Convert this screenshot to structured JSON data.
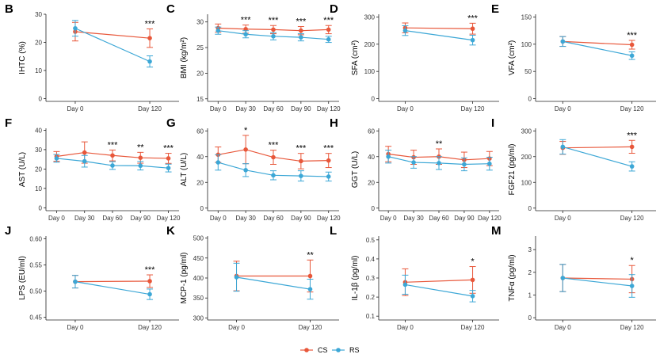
{
  "colors": {
    "CS": "#e8573a",
    "RS": "#3ca7d6",
    "axis": "#222222"
  },
  "legend": {
    "items": [
      {
        "key": "CS",
        "label": "CS"
      },
      {
        "key": "RS",
        "label": "RS"
      }
    ]
  },
  "chart_data": [
    {
      "letter": "B",
      "type": "line",
      "ylabel": "IHTC (%)",
      "categories": [
        "Day 0",
        "Day 120"
      ],
      "ylim": [
        -1,
        30
      ],
      "yticks": [
        0,
        10,
        20,
        30
      ],
      "series": [
        {
          "name": "CS",
          "values": [
            23.8,
            21.5
          ],
          "err": [
            3.3,
            3.3
          ]
        },
        {
          "name": "RS",
          "values": [
            25.0,
            13.2
          ],
          "err": [
            2.8,
            2.0
          ]
        }
      ],
      "annotations": [
        "",
        "***"
      ]
    },
    {
      "letter": "C",
      "type": "line",
      "ylabel": "BMI (kg/m²)",
      "categories": [
        "Day 0",
        "Day 30",
        "Day 60",
        "Day 90",
        "Day 120"
      ],
      "ylim": [
        14.5,
        31.5
      ],
      "yticks": [
        15,
        20,
        25,
        30
      ],
      "series": [
        {
          "name": "CS",
          "values": [
            28.8,
            28.6,
            28.5,
            28.3,
            28.5
          ],
          "err": [
            0.8,
            0.8,
            0.8,
            0.8,
            0.8
          ]
        },
        {
          "name": "RS",
          "values": [
            28.3,
            27.6,
            27.2,
            27.0,
            26.6
          ],
          "err": [
            0.7,
            0.7,
            0.7,
            0.7,
            0.6
          ]
        }
      ],
      "annotations": [
        "",
        "***",
        "***",
        "***",
        "***"
      ]
    },
    {
      "letter": "D",
      "type": "line",
      "ylabel": "SFA (cm²)",
      "categories": [
        "Day 0",
        "Day 120"
      ],
      "ylim": [
        -10,
        310
      ],
      "yticks": [
        0,
        100,
        200,
        300
      ],
      "series": [
        {
          "name": "CS",
          "values": [
            260,
            257
          ],
          "err": [
            18,
            20
          ]
        },
        {
          "name": "RS",
          "values": [
            250,
            215
          ],
          "err": [
            18,
            18
          ]
        }
      ],
      "annotations": [
        "",
        "***"
      ]
    },
    {
      "letter": "E",
      "type": "line",
      "ylabel": "VFA (cm²)",
      "categories": [
        "Day 0",
        "Day 120"
      ],
      "ylim": [
        -5,
        155
      ],
      "yticks": [
        0,
        50,
        100,
        150
      ],
      "series": [
        {
          "name": "CS",
          "values": [
            105,
            99
          ],
          "err": [
            9,
            8
          ]
        },
        {
          "name": "RS",
          "values": [
            105,
            79
          ],
          "err": [
            9,
            7
          ]
        }
      ],
      "annotations": [
        "",
        "***"
      ]
    },
    {
      "letter": "F",
      "type": "line",
      "ylabel": "AST (U/L)",
      "categories": [
        "Day 0",
        "Day 30",
        "Day 60",
        "Day 90",
        "Day 120"
      ],
      "ylim": [
        -1.5,
        41
      ],
      "yticks": [
        0,
        10,
        20,
        30,
        40
      ],
      "series": [
        {
          "name": "CS",
          "values": [
            26.5,
            28.5,
            27.0,
            25.8,
            25.5
          ],
          "err": [
            2.5,
            5.5,
            2.8,
            2.8,
            2.6
          ]
        },
        {
          "name": "RS",
          "values": [
            25.5,
            24.0,
            21.8,
            21.7,
            20.5
          ],
          "err": [
            2.0,
            3.0,
            2.0,
            2.2,
            2.0
          ]
        }
      ],
      "annotations": [
        "",
        "",
        "***",
        "**",
        "***"
      ]
    },
    {
      "letter": "G",
      "type": "line",
      "ylabel": "ALT (U/L)",
      "categories": [
        "Day 0",
        "Day 30",
        "Day 60",
        "Day 90",
        "Day 120"
      ],
      "ylim": [
        -2,
        62
      ],
      "yticks": [
        0,
        20,
        40,
        60
      ],
      "series": [
        {
          "name": "CS",
          "values": [
            41.5,
            45.5,
            39.5,
            36.5,
            37.0
          ],
          "err": [
            6,
            11,
            5.5,
            6,
            5.5
          ]
        },
        {
          "name": "RS",
          "values": [
            35.5,
            29.5,
            25.5,
            25.0,
            24.5
          ],
          "err": [
            6,
            5,
            3.5,
            4,
            3.5
          ]
        }
      ],
      "annotations": [
        "",
        "*",
        "***",
        "***",
        "***"
      ]
    },
    {
      "letter": "H",
      "type": "line",
      "ylabel": "GGT (U/L)",
      "categories": [
        "Day 0",
        "Day 30",
        "Day 60",
        "Day 90",
        "Day 120"
      ],
      "ylim": [
        -2,
        62
      ],
      "yticks": [
        0,
        20,
        40,
        60
      ],
      "series": [
        {
          "name": "CS",
          "values": [
            42,
            39.5,
            40,
            37.5,
            38.5
          ],
          "err": [
            6,
            5.5,
            6,
            6,
            5.5
          ]
        },
        {
          "name": "RS",
          "values": [
            40,
            35.5,
            35,
            34,
            34.5
          ],
          "err": [
            5,
            4.5,
            5,
            5,
            5
          ]
        }
      ],
      "annotations": [
        "",
        "",
        "**",
        "",
        ""
      ]
    },
    {
      "letter": "I",
      "type": "line",
      "ylabel": "FGF21 (pg/ml)",
      "categories": [
        "Day 0",
        "Day 120"
      ],
      "ylim": [
        -10,
        310
      ],
      "yticks": [
        0,
        100,
        200,
        300
      ],
      "series": [
        {
          "name": "CS",
          "values": [
            234,
            238
          ],
          "err": [
            25,
            25
          ]
        },
        {
          "name": "RS",
          "values": [
            238,
            162
          ],
          "err": [
            28,
            18
          ]
        }
      ],
      "annotations": [
        "",
        "***"
      ]
    },
    {
      "letter": "J",
      "type": "line",
      "ylabel": "LPS (EU/ml)",
      "categories": [
        "Day 0",
        "Day 120"
      ],
      "ylim": [
        0.445,
        0.605
      ],
      "yticks": [
        0.45,
        0.5,
        0.55,
        0.6
      ],
      "decimals": 2,
      "series": [
        {
          "name": "CS",
          "values": [
            0.518,
            0.519
          ],
          "err": [
            0.012,
            0.012
          ]
        },
        {
          "name": "RS",
          "values": [
            0.518,
            0.494
          ],
          "err": [
            0.012,
            0.01
          ]
        }
      ],
      "annotations": [
        "",
        "***"
      ]
    },
    {
      "letter": "K",
      "type": "line",
      "ylabel": "MCP-1 (pg/ml)",
      "categories": [
        "Day 0",
        "Day 120"
      ],
      "ylim": [
        295,
        505
      ],
      "yticks": [
        300,
        350,
        400,
        450,
        500
      ],
      "series": [
        {
          "name": "CS",
          "values": [
            405,
            405
          ],
          "err": [
            37,
            40
          ]
        },
        {
          "name": "RS",
          "values": [
            402,
            372
          ],
          "err": [
            35,
            25
          ]
        }
      ],
      "annotations": [
        "",
        "**"
      ]
    },
    {
      "letter": "L",
      "type": "line",
      "ylabel": "IL-1β (pg/ml)",
      "categories": [
        "Day 0",
        "Day 120"
      ],
      "ylim": [
        0.08,
        0.52
      ],
      "yticks": [
        0.1,
        0.2,
        0.3,
        0.4,
        0.5
      ],
      "decimals": 1,
      "series": [
        {
          "name": "CS",
          "values": [
            0.278,
            0.29
          ],
          "err": [
            0.07,
            0.07
          ]
        },
        {
          "name": "RS",
          "values": [
            0.265,
            0.205
          ],
          "err": [
            0.05,
            0.03
          ]
        }
      ],
      "annotations": [
        "",
        "*"
      ]
    },
    {
      "letter": "M",
      "type": "line",
      "ylabel": "TNFα (pg/ml)",
      "categories": [
        "Day 0",
        "Day 120"
      ],
      "ylim": [
        -0.1,
        3.6
      ],
      "yticks": [
        0,
        1,
        2,
        3
      ],
      "series": [
        {
          "name": "CS",
          "values": [
            1.75,
            1.7
          ],
          "err": [
            0.6,
            0.6
          ]
        },
        {
          "name": "RS",
          "values": [
            1.75,
            1.4
          ],
          "err": [
            0.6,
            0.5
          ]
        }
      ],
      "annotations": [
        "",
        "*"
      ]
    }
  ]
}
